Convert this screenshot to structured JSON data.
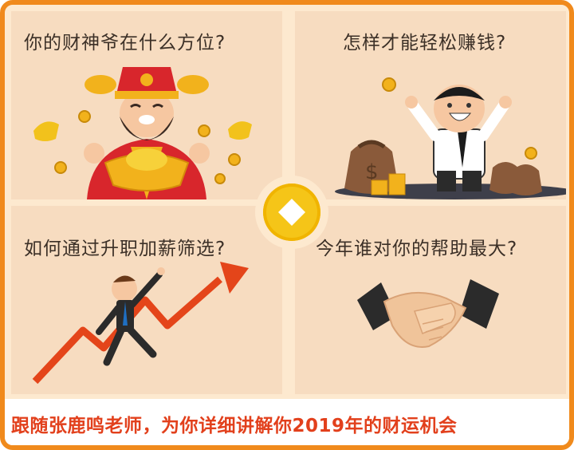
{
  "panels": {
    "wealth_god": {
      "question": "你的财神爷在什么方位?"
    },
    "make_money": {
      "question": "怎样才能轻松赚钱?"
    },
    "promotion": {
      "question": "如何通过升职加薪筛选?"
    },
    "helper": {
      "question": "今年谁对你的帮助最大?"
    }
  },
  "footer": {
    "text": "跟随张鹿鸣老师，为你详细讲解你2019年的财运机会"
  },
  "colors": {
    "border": "#f08a1c",
    "panel_bg": "#f7dcc0",
    "footer_text": "#e2401c",
    "coin": "#f5c518"
  },
  "icons": {
    "wealth_god": "wealth-god-icon",
    "businessman": "happy-businessman-icon",
    "climber": "rising-chart-man-icon",
    "handshake": "handshake-icon",
    "center": "gold-coin-icon"
  }
}
